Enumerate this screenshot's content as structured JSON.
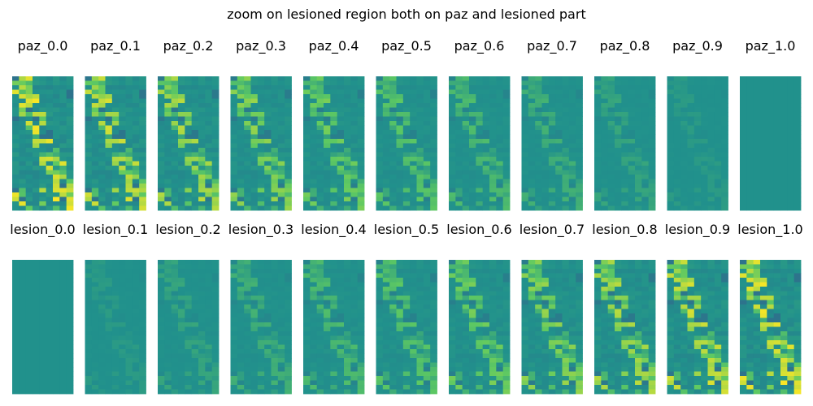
{
  "chart_data": {
    "type": "heatmap",
    "title": "zoom on lesioned region both on paz and lesioned part",
    "colormap": "viridis",
    "grid": false,
    "axes": "off",
    "rows": [
      {
        "name": "paz",
        "panels": [
          "paz_0.0",
          "paz_0.1",
          "paz_0.2",
          "paz_0.3",
          "paz_0.4",
          "paz_0.5",
          "paz_0.6",
          "paz_0.7",
          "paz_0.8",
          "paz_0.9",
          "paz_1.0"
        ],
        "intensity": [
          1.0,
          0.9,
          0.8,
          0.7,
          0.6,
          0.5,
          0.4,
          0.3,
          0.2,
          0.1,
          0.0
        ]
      },
      {
        "name": "lesion",
        "panels": [
          "lesion_0.0",
          "lesion_0.1",
          "lesion_0.2",
          "lesion_0.3",
          "lesion_0.4",
          "lesion_0.5",
          "lesion_0.6",
          "lesion_0.7",
          "lesion_0.8",
          "lesion_0.9",
          "lesion_1.0"
        ],
        "intensity": [
          0.0,
          0.1,
          0.2,
          0.3,
          0.4,
          0.5,
          0.6,
          0.7,
          0.8,
          0.9,
          1.0
        ]
      }
    ]
  }
}
